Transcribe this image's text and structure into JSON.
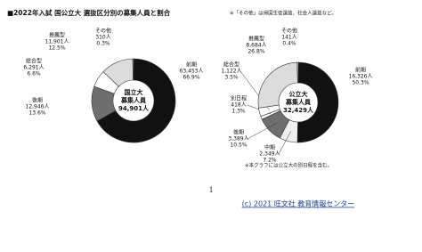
{
  "title": "■2022年入試 国公立大 選抜区分別の募集人員と割合",
  "note": "※「その他」は帰国生徒選抜、社会人選抜など。",
  "page_number": "1",
  "footer": "(c) 2021 旺文社 教育情報センター",
  "chart_data": [
    {
      "type": "pie",
      "center_lines": [
        "国立大",
        "募集人員",
        "94,901人"
      ],
      "categories": [
        "前期",
        "後期",
        "総合型",
        "推薦型",
        "その他"
      ],
      "values": [
        63453,
        12946,
        6291,
        11901,
        310
      ],
      "value_labels": [
        "63,453人",
        "12,946人",
        "6,291人",
        "11,901人",
        "310人"
      ],
      "percents": [
        66.9,
        13.6,
        6.6,
        12.5,
        0.3
      ],
      "percent_labels": [
        "66.9%",
        "13.6%",
        "6.6%",
        "12.5%",
        "0.3%"
      ],
      "colors": [
        "#111111",
        "#6e6e6e",
        "#ffffff",
        "#dcdcdc",
        "#ffffff"
      ]
    },
    {
      "type": "pie",
      "center_lines": [
        "公立大",
        "募集人員",
        "32,429人"
      ],
      "categories": [
        "前期",
        "中期",
        "後期",
        "別日程",
        "総合型",
        "推薦型",
        "その他"
      ],
      "values": [
        16326,
        2349,
        3389,
        418,
        1122,
        8684,
        141
      ],
      "value_labels": [
        "16,326人",
        "2,349人",
        "3,389人",
        "418人",
        "1,122人",
        "8,684人",
        "141人"
      ],
      "percents": [
        50.3,
        7.2,
        10.5,
        1.3,
        3.5,
        26.8,
        0.4
      ],
      "percent_labels": [
        "50.3%",
        "7.2%",
        "10.5%",
        "1.3%",
        "3.5%",
        "26.8%",
        "0.4%"
      ],
      "colors": [
        "#111111",
        "#f0f0f0",
        "#6e6e6e",
        "#ffffff",
        "#ffffff",
        "#dcdcdc",
        "#ffffff"
      ],
      "note": "※本グラフには公立大の別日程を含む。"
    }
  ]
}
